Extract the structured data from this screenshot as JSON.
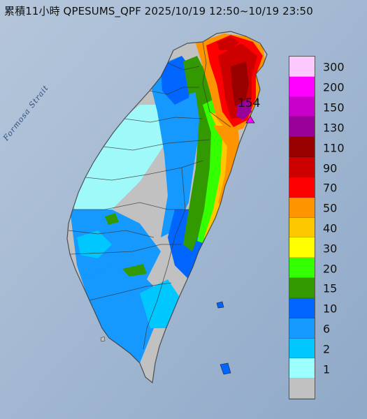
{
  "title": "累積11小時 QPESUMS_QPF 2025/10/19 12:50~10/19 23:50",
  "strait_label": "Formosa Strait",
  "max_value_label": "154",
  "legend": [
    {
      "label": "300",
      "color": "#fdc8fe"
    },
    {
      "label": "200",
      "color": "#fd00fe"
    },
    {
      "label": "150",
      "color": "#c900c9"
    },
    {
      "label": "130",
      "color": "#9a009a"
    },
    {
      "label": "110",
      "color": "#990000"
    },
    {
      "label": "90",
      "color": "#cd0000"
    },
    {
      "label": "70",
      "color": "#fe0000"
    },
    {
      "label": "50",
      "color": "#fe9500"
    },
    {
      "label": "40",
      "color": "#fec800"
    },
    {
      "label": "30",
      "color": "#fefe00"
    },
    {
      "label": "20",
      "color": "#33ff00"
    },
    {
      "label": "15",
      "color": "#339900"
    },
    {
      "label": "10",
      "color": "#0066ff"
    },
    {
      "label": "6",
      "color": "#1599ff"
    },
    {
      "label": "2",
      "color": "#00c8fe"
    },
    {
      "label": "1",
      "color": "#9bffff"
    },
    {
      "label": "",
      "color": "#c1c1c1"
    }
  ]
}
